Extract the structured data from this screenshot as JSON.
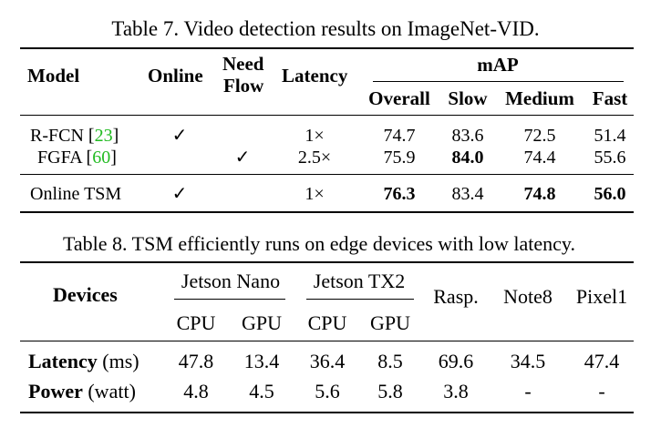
{
  "table7": {
    "caption": "Table 7. Video detection results on ImageNet-VID.",
    "headers": {
      "model": "Model",
      "online": "Online",
      "need_flow_1": "Need",
      "need_flow_2": "Flow",
      "latency": "Latency",
      "map": "mAP",
      "overall": "Overall",
      "slow": "Slow",
      "medium": "Medium",
      "fast": "Fast"
    },
    "rows": [
      {
        "model": "R-FCN ",
        "cite": "23",
        "online": "✓",
        "flow": "",
        "latency": "1×",
        "overall": "74.7",
        "slow": "83.6",
        "medium": "72.5",
        "fast": "51.4"
      },
      {
        "model": "FGFA ",
        "cite": "60",
        "online": "",
        "flow": "✓",
        "latency": "2.5×",
        "overall": "75.9",
        "slow": "84.0",
        "medium": "74.4",
        "fast": "55.6"
      },
      {
        "model": "Online TSM",
        "cite": "",
        "online": "✓",
        "flow": "",
        "latency": "1×",
        "overall": "76.3",
        "slow": "83.4",
        "medium": "74.8",
        "fast": "56.0"
      }
    ]
  },
  "table8": {
    "caption": "Table 8. TSM efficiently runs on edge devices with low latency.",
    "headers": {
      "devices": "Devices",
      "jetson_nano": "Jetson Nano",
      "jetson_tx2": "Jetson TX2",
      "rasp": "Rasp.",
      "note8": "Note8",
      "pixel1": "Pixel1",
      "cpu": "CPU",
      "gpu": "GPU"
    },
    "rows": [
      {
        "label": "Latency",
        "unit": " (ms)",
        "values": [
          "47.8",
          "13.4",
          "36.4",
          "8.5",
          "69.6",
          "34.5",
          "47.4"
        ]
      },
      {
        "label": "Power",
        "unit": " (watt)",
        "values": [
          "4.8",
          "4.5",
          "5.6",
          "5.8",
          "3.8",
          "-",
          "-"
        ]
      }
    ]
  }
}
